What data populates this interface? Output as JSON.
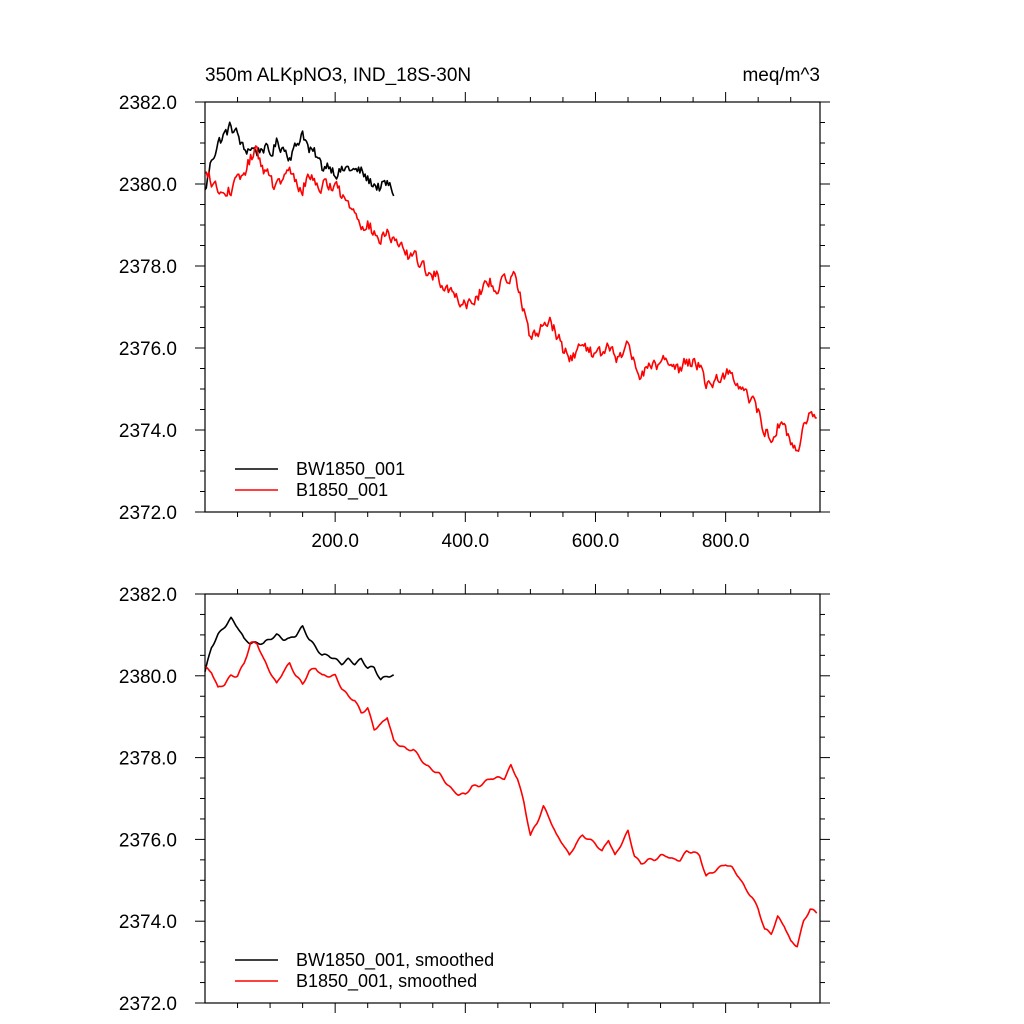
{
  "chart_data": [
    {
      "type": "line",
      "title_left": "350m ALKpNO3, IND_18S-30N",
      "title_right": "meq/m^3",
      "xlim": [
        0,
        945
      ],
      "ylim": [
        2372.0,
        2382.0
      ],
      "x_major_ticks": [
        200,
        400,
        600,
        800
      ],
      "x_minor_step": 50,
      "x_tick_labels": [
        "200.0",
        "400.0",
        "600.0",
        "800.0"
      ],
      "y_major_ticks": [
        2372,
        2374,
        2376,
        2378,
        2380,
        2382
      ],
      "y_minor_step": 0.5,
      "y_tick_labels": [
        "2372.0",
        "2374.0",
        "2376.0",
        "2378.0",
        "2380.0",
        "2382.0"
      ],
      "legend_position": "bottom-left",
      "grid": false,
      "series": [
        {
          "name": "BW1850_001",
          "color": "#000000",
          "x": [
            0,
            10,
            20,
            30,
            40,
            50,
            60,
            70,
            80,
            90,
            100,
            110,
            120,
            130,
            140,
            150,
            160,
            170,
            180,
            190,
            200,
            210,
            220,
            230,
            240,
            250,
            260,
            270,
            280,
            290
          ],
          "y": [
            2379.8,
            2380.6,
            2381.0,
            2381.2,
            2381.4,
            2381.2,
            2380.8,
            2380.9,
            2380.8,
            2380.9,
            2380.7,
            2381.0,
            2380.9,
            2380.7,
            2380.9,
            2381.3,
            2380.8,
            2380.7,
            2380.4,
            2380.5,
            2380.3,
            2380.3,
            2380.4,
            2380.3,
            2380.3,
            2380.1,
            2380.0,
            2379.9,
            2380.0,
            2379.8
          ],
          "noise": 0.25
        },
        {
          "name": "B1850_001",
          "color": "#ff0000",
          "x": [
            0,
            10,
            20,
            30,
            40,
            50,
            60,
            70,
            80,
            90,
            100,
            110,
            120,
            130,
            140,
            150,
            160,
            170,
            180,
            190,
            200,
            210,
            220,
            230,
            240,
            250,
            260,
            270,
            280,
            290,
            300,
            310,
            320,
            330,
            340,
            350,
            360,
            370,
            380,
            390,
            400,
            410,
            420,
            430,
            440,
            450,
            460,
            470,
            480,
            490,
            500,
            510,
            520,
            530,
            540,
            550,
            560,
            570,
            580,
            590,
            600,
            610,
            620,
            630,
            640,
            650,
            660,
            670,
            680,
            690,
            700,
            710,
            720,
            730,
            740,
            750,
            760,
            770,
            780,
            790,
            800,
            810,
            820,
            830,
            840,
            850,
            860,
            870,
            880,
            890,
            900,
            910,
            920,
            930,
            940
          ],
          "y": [
            2380.2,
            2380.1,
            2379.8,
            2379.7,
            2379.9,
            2380.0,
            2380.3,
            2380.6,
            2380.8,
            2380.4,
            2380.1,
            2379.9,
            2380.1,
            2380.3,
            2380.0,
            2379.9,
            2380.2,
            2380.1,
            2379.9,
            2380.0,
            2380.0,
            2379.7,
            2379.5,
            2379.4,
            2379.1,
            2379.0,
            2378.8,
            2378.6,
            2378.8,
            2378.6,
            2378.4,
            2378.3,
            2378.2,
            2378.1,
            2377.9,
            2377.8,
            2377.7,
            2377.5,
            2377.4,
            2377.2,
            2377.1,
            2377.2,
            2377.3,
            2377.5,
            2377.6,
            2377.5,
            2377.6,
            2377.8,
            2377.6,
            2377.0,
            2376.2,
            2376.3,
            2376.6,
            2376.8,
            2376.3,
            2376.0,
            2375.7,
            2375.9,
            2376.1,
            2376.0,
            2375.8,
            2375.9,
            2376.0,
            2375.7,
            2375.8,
            2376.2,
            2375.6,
            2375.4,
            2375.5,
            2375.6,
            2375.6,
            2375.7,
            2375.5,
            2375.5,
            2375.7,
            2375.7,
            2375.6,
            2375.1,
            2375.2,
            2375.3,
            2375.4,
            2375.4,
            2375.1,
            2374.9,
            2374.7,
            2374.4,
            2374.0,
            2373.8,
            2374.1,
            2374.0,
            2373.7,
            2373.5,
            2374.0,
            2374.3,
            2374.2
          ],
          "noise": 0.28
        }
      ]
    },
    {
      "type": "line",
      "xlim": [
        0,
        945
      ],
      "ylim": [
        2372.0,
        2382.0
      ],
      "x_major_ticks": [
        200,
        400,
        600,
        800
      ],
      "x_minor_step": 50,
      "y_major_ticks": [
        2372,
        2374,
        2376,
        2378,
        2380,
        2382
      ],
      "y_minor_step": 0.5,
      "y_tick_labels": [
        "2372.0",
        "2374.0",
        "2376.0",
        "2378.0",
        "2380.0",
        "2382.0"
      ],
      "legend_position": "bottom-left",
      "grid": false,
      "series": [
        {
          "name": "BW1850_001, smoothed",
          "color": "#000000",
          "x": [
            0,
            10,
            20,
            30,
            40,
            50,
            60,
            70,
            80,
            90,
            100,
            110,
            120,
            130,
            140,
            150,
            160,
            170,
            180,
            190,
            200,
            210,
            220,
            230,
            240,
            250,
            260,
            270,
            280,
            290
          ],
          "y": [
            2380.1,
            2380.7,
            2381.0,
            2381.2,
            2381.4,
            2381.2,
            2380.9,
            2380.8,
            2380.8,
            2380.8,
            2380.9,
            2381.0,
            2380.9,
            2380.9,
            2381.0,
            2381.2,
            2380.9,
            2380.7,
            2380.5,
            2380.5,
            2380.4,
            2380.3,
            2380.4,
            2380.3,
            2380.4,
            2380.2,
            2380.2,
            2379.9,
            2380.0,
            2380.0
          ],
          "noise": 0.0
        },
        {
          "name": "B1850_001, smoothed",
          "color": "#ff0000",
          "x": [
            0,
            10,
            20,
            30,
            40,
            50,
            60,
            70,
            80,
            90,
            100,
            110,
            120,
            130,
            140,
            150,
            160,
            170,
            180,
            190,
            200,
            210,
            220,
            230,
            240,
            250,
            260,
            270,
            280,
            290,
            300,
            310,
            320,
            330,
            340,
            350,
            360,
            370,
            380,
            390,
            400,
            410,
            420,
            430,
            440,
            450,
            460,
            470,
            480,
            490,
            500,
            510,
            520,
            530,
            540,
            550,
            560,
            570,
            580,
            590,
            600,
            610,
            620,
            630,
            640,
            650,
            660,
            670,
            680,
            690,
            700,
            710,
            720,
            730,
            740,
            750,
            760,
            770,
            780,
            790,
            800,
            810,
            820,
            830,
            840,
            850,
            860,
            870,
            880,
            890,
            900,
            910,
            920,
            930,
            940
          ],
          "y": [
            2380.2,
            2380.1,
            2379.7,
            2379.8,
            2380.0,
            2380.0,
            2380.3,
            2380.8,
            2380.8,
            2380.4,
            2380.1,
            2379.8,
            2380.1,
            2380.3,
            2380.0,
            2379.8,
            2380.1,
            2380.2,
            2380.0,
            2380.0,
            2380.0,
            2379.7,
            2379.5,
            2379.4,
            2379.1,
            2379.2,
            2378.7,
            2378.8,
            2379.0,
            2378.4,
            2378.3,
            2378.2,
            2378.2,
            2378.0,
            2377.8,
            2377.7,
            2377.6,
            2377.4,
            2377.2,
            2377.1,
            2377.1,
            2377.3,
            2377.3,
            2377.4,
            2377.5,
            2377.5,
            2377.5,
            2377.8,
            2377.5,
            2376.9,
            2376.1,
            2376.4,
            2376.8,
            2376.5,
            2376.1,
            2375.9,
            2375.6,
            2375.9,
            2376.1,
            2376.0,
            2375.9,
            2375.7,
            2376.0,
            2375.6,
            2375.9,
            2376.2,
            2375.6,
            2375.4,
            2375.5,
            2375.5,
            2375.6,
            2375.6,
            2375.5,
            2375.5,
            2375.7,
            2375.7,
            2375.6,
            2375.1,
            2375.2,
            2375.3,
            2375.4,
            2375.3,
            2375.1,
            2374.8,
            2374.6,
            2374.3,
            2373.8,
            2373.7,
            2374.1,
            2373.9,
            2373.5,
            2373.4,
            2374.0,
            2374.3,
            2374.2
          ],
          "noise": 0.0
        }
      ]
    }
  ]
}
